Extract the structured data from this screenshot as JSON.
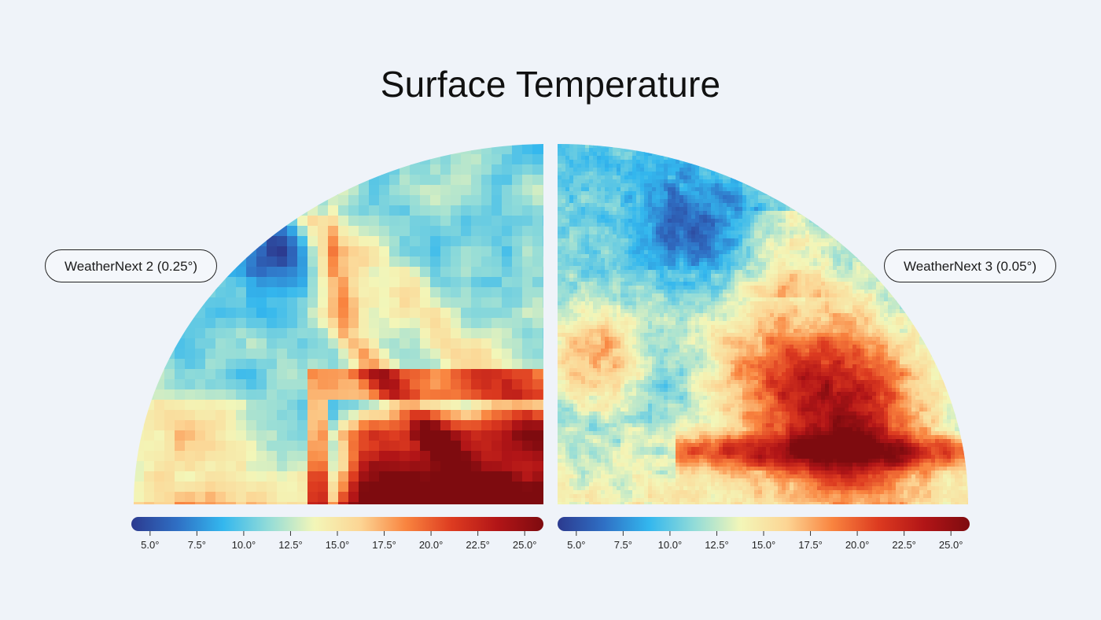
{
  "title": "Surface Temperature",
  "panels": [
    {
      "id": "left",
      "label": "WeatherNext 2 (0.25°)"
    },
    {
      "id": "right",
      "label": "WeatherNext 3 (0.05°)"
    }
  ],
  "colorbar": {
    "min": 4.0,
    "max": 26.0,
    "ticks": [
      {
        "value": 5.0,
        "label": "5.0°"
      },
      {
        "value": 7.5,
        "label": "7.5°"
      },
      {
        "value": 10.0,
        "label": "10.0°"
      },
      {
        "value": 12.5,
        "label": "12.5°"
      },
      {
        "value": 15.0,
        "label": "15.0°"
      },
      {
        "value": 17.5,
        "label": "17.5°"
      },
      {
        "value": 20.0,
        "label": "20.0°"
      },
      {
        "value": 22.5,
        "label": "22.5°"
      },
      {
        "value": 25.0,
        "label": "25.0°"
      }
    ],
    "stops": [
      "#2c3a8f",
      "#2f6fc4",
      "#33b7ee",
      "#93dcd8",
      "#f3f6b8",
      "#fcd594",
      "#f9843f",
      "#dd3b20",
      "#b21517",
      "#7e0b0f"
    ]
  }
}
